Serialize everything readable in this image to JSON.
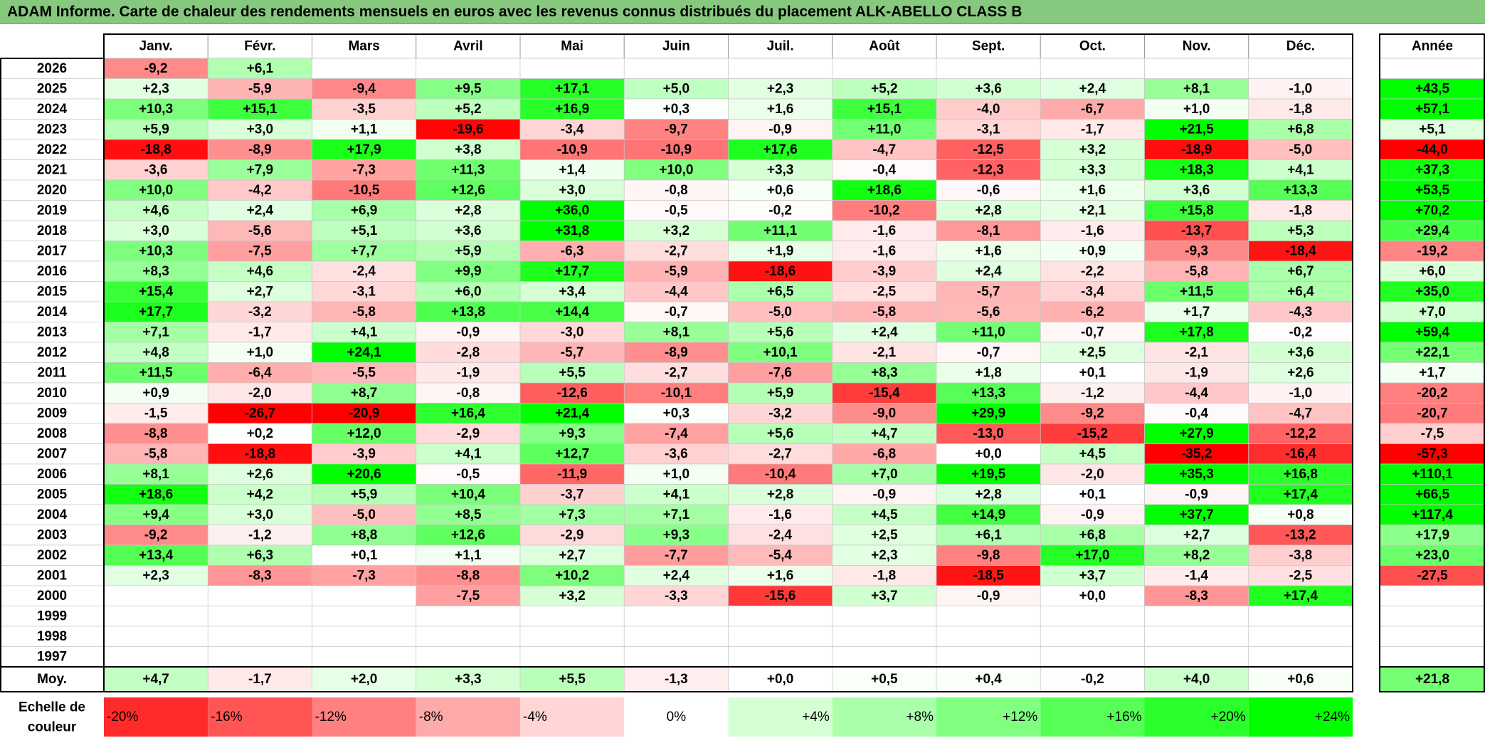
{
  "title": "ADAM Informe. Carte de chaleur des rendements mensuels en euros avec les revenus connus distribués du placement ALK-ABELLO CLASS B",
  "chart_data": {
    "type": "heatmap",
    "columns": [
      "Janv.",
      "Févr.",
      "Mars",
      "Avril",
      "Mai",
      "Juin",
      "Juil.",
      "Août",
      "Sept.",
      "Oct.",
      "Nov.",
      "Déc."
    ],
    "annual_header": "Année",
    "rows": [
      {
        "year": "2026",
        "values": [
          "-9,2",
          "+6,1",
          "",
          "",
          "",
          "",
          "",
          "",
          "",
          "",
          "",
          ""
        ],
        "annual": ""
      },
      {
        "year": "2025",
        "values": [
          "+2,3",
          "-5,9",
          "-9,4",
          "+9,5",
          "+17,1",
          "+5,0",
          "+2,3",
          "+5,2",
          "+3,6",
          "+2,4",
          "+8,1",
          "-1,0"
        ],
        "annual": "+43,5"
      },
      {
        "year": "2024",
        "values": [
          "+10,3",
          "+15,1",
          "-3,5",
          "+5,2",
          "+16,9",
          "+0,3",
          "+1,6",
          "+15,1",
          "-4,0",
          "-6,7",
          "+1,0",
          "-1,8"
        ],
        "annual": "+57,1"
      },
      {
        "year": "2023",
        "values": [
          "+5,9",
          "+3,0",
          "+1,1",
          "-19,6",
          "-3,4",
          "-9,7",
          "-0,9",
          "+11,0",
          "-3,1",
          "-1,7",
          "+21,5",
          "+6,8"
        ],
        "annual": "+5,1"
      },
      {
        "year": "2022",
        "values": [
          "-18,8",
          "-8,9",
          "+17,9",
          "+3,8",
          "-10,9",
          "-10,9",
          "+17,6",
          "-4,7",
          "-12,5",
          "+3,2",
          "-18,9",
          "-5,0"
        ],
        "annual": "-44,0"
      },
      {
        "year": "2021",
        "values": [
          "-3,6",
          "+7,9",
          "-7,3",
          "+11,3",
          "+1,4",
          "+10,0",
          "+3,3",
          "-0,4",
          "-12,3",
          "+3,3",
          "+18,3",
          "+4,1"
        ],
        "annual": "+37,3"
      },
      {
        "year": "2020",
        "values": [
          "+10,0",
          "-4,2",
          "-10,5",
          "+12,6",
          "+3,0",
          "-0,8",
          "+0,6",
          "+18,6",
          "-0,6",
          "+1,6",
          "+3,6",
          "+13,3"
        ],
        "annual": "+53,5"
      },
      {
        "year": "2019",
        "values": [
          "+4,6",
          "+2,4",
          "+6,9",
          "+2,8",
          "+36,0",
          "-0,5",
          "-0,2",
          "-10,2",
          "+2,8",
          "+2,1",
          "+15,8",
          "-1,8"
        ],
        "annual": "+70,2"
      },
      {
        "year": "2018",
        "values": [
          "+3,0",
          "-5,6",
          "+5,1",
          "+3,6",
          "+31,8",
          "+3,2",
          "+11,1",
          "-1,6",
          "-8,1",
          "-1,6",
          "-13,7",
          "+5,3"
        ],
        "annual": "+29,4"
      },
      {
        "year": "2017",
        "values": [
          "+10,3",
          "-7,5",
          "+7,7",
          "+5,9",
          "-6,3",
          "-2,7",
          "+1,9",
          "-1,6",
          "+1,6",
          "+0,9",
          "-9,3",
          "-18,4"
        ],
        "annual": "-19,2"
      },
      {
        "year": "2016",
        "values": [
          "+8,3",
          "+4,6",
          "-2,4",
          "+9,9",
          "+17,7",
          "-5,9",
          "-18,6",
          "-3,9",
          "+2,4",
          "-2,2",
          "-5,8",
          "+6,7"
        ],
        "annual": "+6,0"
      },
      {
        "year": "2015",
        "values": [
          "+15,4",
          "+2,7",
          "-3,1",
          "+6,0",
          "+3,4",
          "-4,4",
          "+6,5",
          "-2,5",
          "-5,7",
          "-3,4",
          "+11,5",
          "+6,4"
        ],
        "annual": "+35,0"
      },
      {
        "year": "2014",
        "values": [
          "+17,7",
          "-3,2",
          "-5,8",
          "+13,8",
          "+14,4",
          "-0,7",
          "-5,0",
          "-5,8",
          "-5,6",
          "-6,2",
          "+1,7",
          "-4,3"
        ],
        "annual": "+7,0"
      },
      {
        "year": "2013",
        "values": [
          "+7,1",
          "-1,7",
          "+4,1",
          "-0,9",
          "-3,0",
          "+8,1",
          "+5,6",
          "+2,4",
          "+11,0",
          "-0,7",
          "+17,8",
          "-0,2"
        ],
        "annual": "+59,4"
      },
      {
        "year": "2012",
        "values": [
          "+4,8",
          "+1,0",
          "+24,1",
          "-2,8",
          "-5,7",
          "-8,9",
          "+10,1",
          "-2,1",
          "-0,7",
          "+2,5",
          "-2,1",
          "+3,6"
        ],
        "annual": "+22,1"
      },
      {
        "year": "2011",
        "values": [
          "+11,5",
          "-6,4",
          "-5,5",
          "-1,9",
          "+5,5",
          "-2,7",
          "-7,6",
          "+8,3",
          "+1,8",
          "+0,1",
          "-1,9",
          "+2,6"
        ],
        "annual": "+1,7"
      },
      {
        "year": "2010",
        "values": [
          "+0,9",
          "-2,0",
          "+8,7",
          "-0,8",
          "-12,6",
          "-10,1",
          "+5,9",
          "-15,4",
          "+13,3",
          "-1,2",
          "-4,4",
          "-1,0"
        ],
        "annual": "-20,2"
      },
      {
        "year": "2009",
        "values": [
          "-1,5",
          "-26,7",
          "-20,9",
          "+16,4",
          "+21,4",
          "+0,3",
          "-3,2",
          "-9,0",
          "+29,9",
          "-9,2",
          "-0,4",
          "-4,7"
        ],
        "annual": "-20,7"
      },
      {
        "year": "2008",
        "values": [
          "-8,8",
          "+0,2",
          "+12,0",
          "-2,9",
          "+9,3",
          "-7,4",
          "+5,6",
          "+4,7",
          "-13,0",
          "-15,2",
          "+27,9",
          "-12,2"
        ],
        "annual": "-7,5"
      },
      {
        "year": "2007",
        "values": [
          "-5,8",
          "-18,8",
          "-3,9",
          "+4,1",
          "+12,7",
          "-3,6",
          "-2,7",
          "-6,8",
          "+0,0",
          "+4,5",
          "-35,2",
          "-16,4"
        ],
        "annual": "-57,3"
      },
      {
        "year": "2006",
        "values": [
          "+8,1",
          "+2,6",
          "+20,6",
          "-0,5",
          "-11,9",
          "+1,0",
          "-10,4",
          "+7,0",
          "+19,5",
          "-2,0",
          "+35,3",
          "+16,8"
        ],
        "annual": "+110,1"
      },
      {
        "year": "2005",
        "values": [
          "+18,6",
          "+4,2",
          "+5,9",
          "+10,4",
          "-3,7",
          "+4,1",
          "+2,8",
          "-0,9",
          "+2,8",
          "+0,1",
          "-0,9",
          "+17,4"
        ],
        "annual": "+66,5"
      },
      {
        "year": "2004",
        "values": [
          "+9,4",
          "+3,0",
          "-5,0",
          "+8,5",
          "+7,3",
          "+7,1",
          "-1,6",
          "+4,5",
          "+14,9",
          "-0,9",
          "+37,7",
          "+0,8"
        ],
        "annual": "+117,4"
      },
      {
        "year": "2003",
        "values": [
          "-9,2",
          "-1,2",
          "+8,8",
          "+12,6",
          "-2,9",
          "+9,3",
          "-2,4",
          "+2,5",
          "+6,1",
          "+6,8",
          "+2,7",
          "-13,2"
        ],
        "annual": "+17,9"
      },
      {
        "year": "2002",
        "values": [
          "+13,4",
          "+6,3",
          "+0,1",
          "+1,1",
          "+2,7",
          "-7,7",
          "-5,4",
          "+2,3",
          "-9,8",
          "+17,0",
          "+8,2",
          "-3,8"
        ],
        "annual": "+23,0"
      },
      {
        "year": "2001",
        "values": [
          "+2,3",
          "-8,3",
          "-7,3",
          "-8,8",
          "+10,2",
          "+2,4",
          "+1,6",
          "-1,8",
          "-18,5",
          "+3,7",
          "-1,4",
          "-2,5"
        ],
        "annual": "-27,5"
      },
      {
        "year": "2000",
        "values": [
          "",
          "",
          "",
          "-7,5",
          "+3,2",
          "-3,3",
          "-15,6",
          "+3,7",
          "-0,9",
          "+0,0",
          "-8,3",
          "+17,4"
        ],
        "annual": ""
      },
      {
        "year": "1999",
        "values": [
          "",
          "",
          "",
          "",
          "",
          "",
          "",
          "",
          "",
          "",
          "",
          ""
        ],
        "annual": ""
      },
      {
        "year": "1998",
        "values": [
          "",
          "",
          "",
          "",
          "",
          "",
          "",
          "",
          "",
          "",
          "",
          ""
        ],
        "annual": ""
      },
      {
        "year": "1997",
        "values": [
          "",
          "",
          "",
          "",
          "",
          "",
          "",
          "",
          "",
          "",
          "",
          ""
        ],
        "annual": ""
      }
    ],
    "average": {
      "label": "Moy.",
      "values": [
        "+4,7",
        "-1,7",
        "+2,0",
        "+3,3",
        "+5,5",
        "-1,3",
        "+0,0",
        "+0,5",
        "+0,4",
        "-0,2",
        "+4,0",
        "+0,6"
      ],
      "annual": "+21,8"
    },
    "scale": {
      "label_line1": "Echelle de",
      "label_line2": "couleur",
      "steps": [
        "-20%",
        "-16%",
        "-12%",
        "-8%",
        "-4%",
        "0%",
        "+4%",
        "+8%",
        "+12%",
        "+16%",
        "+20%",
        "+24%"
      ],
      "step_values": [
        -20,
        -16,
        -12,
        -8,
        -4,
        0,
        4,
        8,
        12,
        16,
        20,
        24
      ]
    },
    "colors": {
      "negative": "#ff0000",
      "positive": "#00ff00",
      "neutral": "#ffffff",
      "title_bar": "#86c97e"
    }
  }
}
